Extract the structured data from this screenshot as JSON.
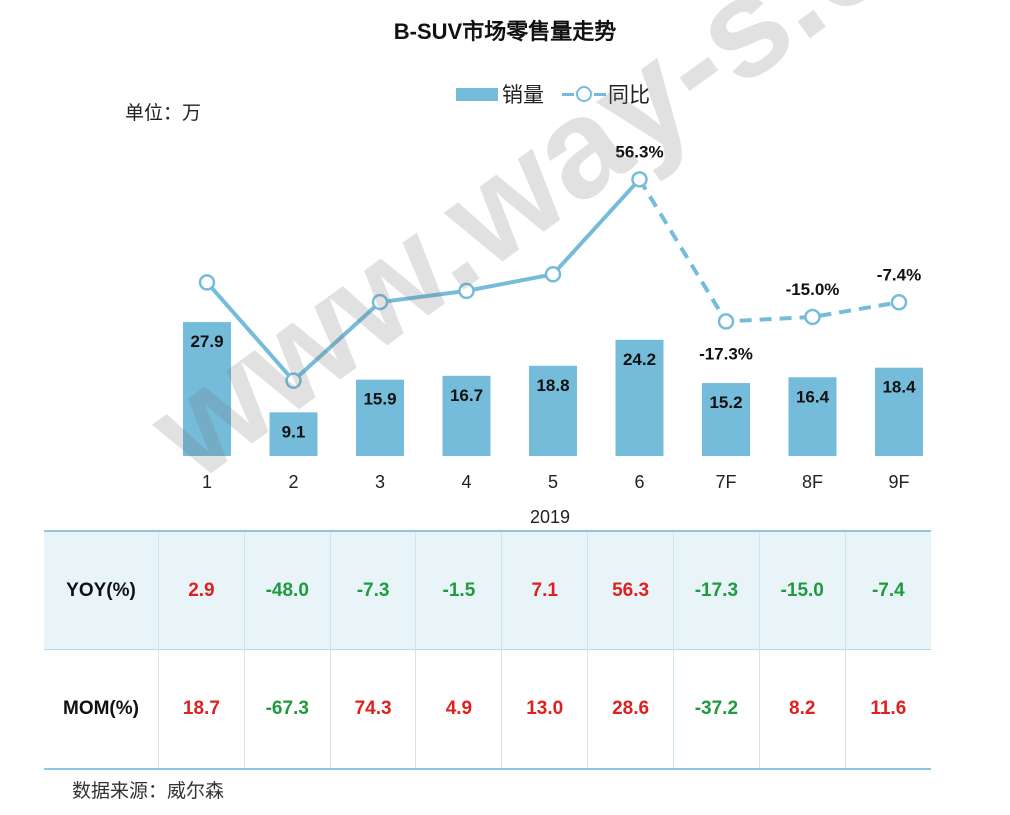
{
  "chart_data": {
    "type": "bar",
    "title": "B-SUV市场零售量走势",
    "unit_label": "单位：万",
    "xlabel": "2019",
    "categories": [
      "1",
      "2",
      "3",
      "4",
      "5",
      "6",
      "7F",
      "8F",
      "9F"
    ],
    "series": [
      {
        "name": "销量",
        "type": "bar",
        "values": [
          27.9,
          9.1,
          15.9,
          16.7,
          18.8,
          24.2,
          15.2,
          16.4,
          18.4
        ]
      },
      {
        "name": "同比",
        "type": "line",
        "values": [
          2.9,
          -48.0,
          -7.3,
          -1.5,
          7.1,
          56.3,
          -17.3,
          -15.0,
          -7.4
        ],
        "visible_labels": {
          "5": "56.3%",
          "6": "-17.3%",
          "7": "-15.0%",
          "8": "-7.4%"
        },
        "forecast_from_index": 5
      }
    ],
    "legend": [
      "销量",
      "同比"
    ]
  },
  "table": {
    "rows": [
      {
        "label": "YOY(%)",
        "values": [
          "2.9",
          "-48.0",
          "-7.3",
          "-1.5",
          "7.1",
          "56.3",
          "-17.3",
          "-15.0",
          "-7.4"
        ]
      },
      {
        "label": "MOM(%)",
        "values": [
          "18.7",
          "-67.3",
          "74.3",
          "4.9",
          "13.0",
          "28.6",
          "-37.2",
          "8.2",
          "11.6"
        ]
      }
    ]
  },
  "source": "数据来源：威尔森",
  "watermark": "www.way-s.cn",
  "colors": {
    "bar": "#75BCDB",
    "line": "#75BCDB",
    "positive": "#E01F1F",
    "negative": "#1E9B3F"
  }
}
